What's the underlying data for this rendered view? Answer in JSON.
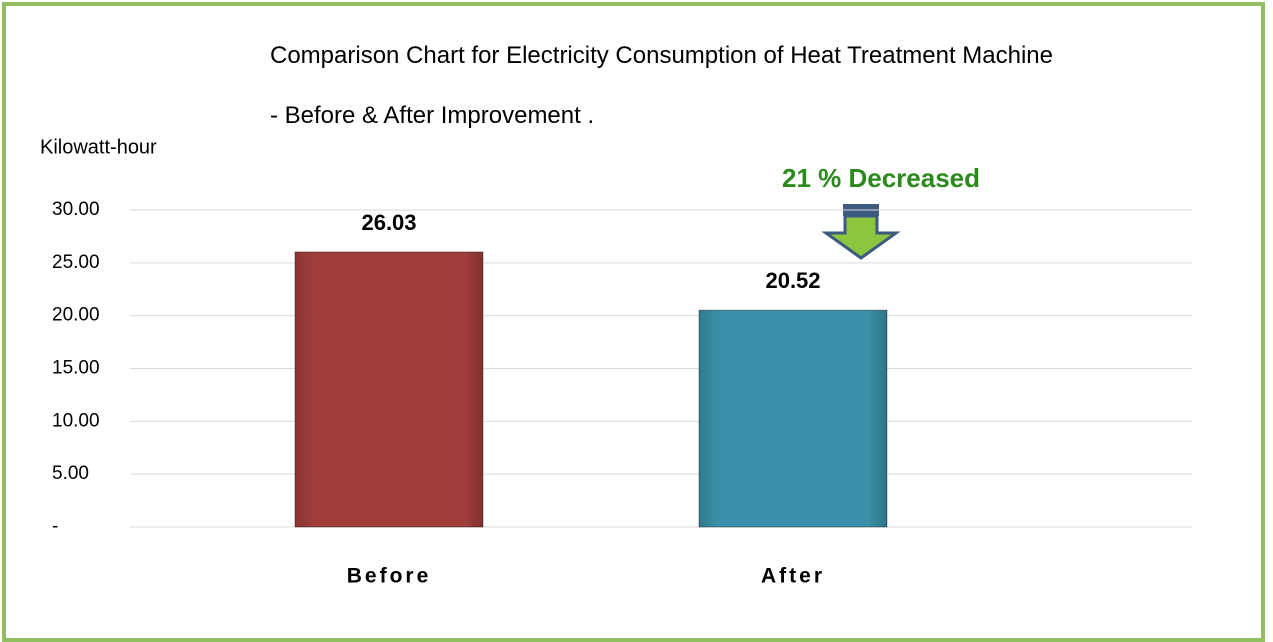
{
  "chart_data": {
    "type": "bar",
    "title": "Comparison Chart for Electricity Consumption of Heat Treatment Machine - Before & After Improvement .",
    "y_label": "Kilowatt-hour",
    "annotation": "21 % Decreased",
    "categories": [
      "Before",
      "After"
    ],
    "values": [
      26.03,
      20.52
    ],
    "colors": [
      "#a03e3c",
      "#3a90a8"
    ],
    "ylim": [
      0,
      30
    ],
    "yticks": [
      {
        "value": 0,
        "label": "-"
      },
      {
        "value": 5,
        "label": "5.00"
      },
      {
        "value": 10,
        "label": "10.00"
      },
      {
        "value": 15,
        "label": "15.00"
      },
      {
        "value": 20,
        "label": "20.00"
      },
      {
        "value": 25,
        "label": "25.00"
      },
      {
        "value": 30,
        "label": "30.00"
      }
    ],
    "grid": true
  }
}
